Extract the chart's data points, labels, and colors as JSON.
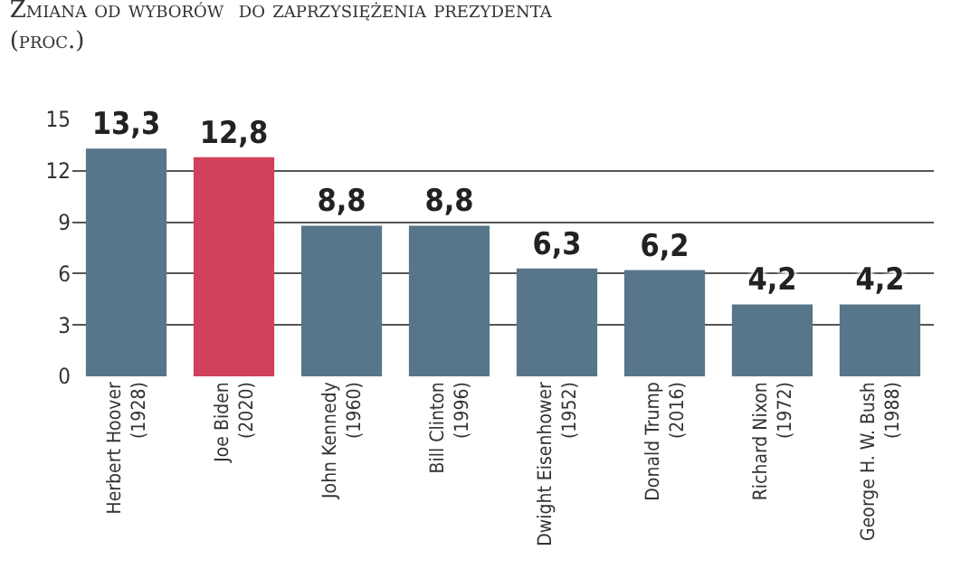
{
  "chart_data": {
    "type": "bar",
    "subtitle": "Zmiana od wyborów  do zaprzysiężenia prezydenta (proc.)",
    "categories": [
      "Herbert Hoover\n(1928)",
      "Joe Biden\n(2020)",
      "John Kennedy\n(1960)",
      "Bill Clinton\n(1996)",
      "Dwight Eisenhower\n(1952)",
      "Donald Trump\n(2016)",
      "Richard Nixon\n(1972)",
      "George H. W. Bush\n(1988)"
    ],
    "values": [
      13.3,
      12.8,
      8.8,
      8.8,
      6.3,
      6.2,
      4.2,
      4.2
    ],
    "colors": [
      "#587689",
      "#d1415c",
      "#587689",
      "#587689",
      "#587689",
      "#587689",
      "#587689",
      "#587689"
    ],
    "value_labels": [
      "13,3",
      "12,8",
      "8,8",
      "8,8",
      "6,3",
      "6,2",
      "4,2",
      "4,2"
    ],
    "ylim": [
      0,
      15
    ],
    "yticks": [
      0,
      3,
      6,
      9,
      12,
      15
    ],
    "grid": "y"
  }
}
